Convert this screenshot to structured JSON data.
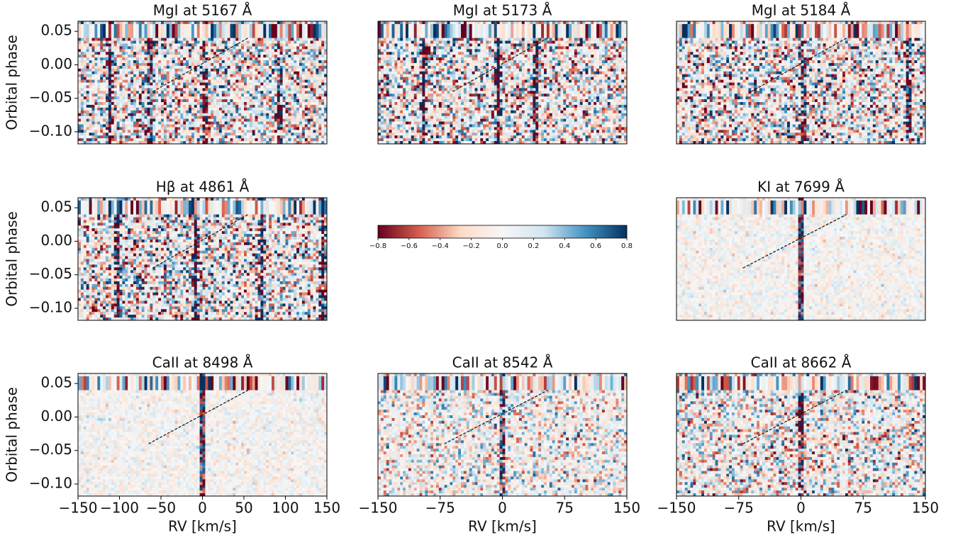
{
  "chart_data": [
    {
      "type": "heatmap",
      "title": "MgI at 5167 Å",
      "xlim": [
        -150,
        150
      ],
      "ylim": [
        -0.118,
        0.065
      ],
      "ylabel": "Orbital phase",
      "yticks": [
        {
          "value": 0.05,
          "label": "0.05"
        },
        {
          "value": 0,
          "label": "0.00"
        },
        {
          "value": -0.05,
          "label": "−0.05"
        },
        {
          "value": -0.1,
          "label": "−0.10"
        }
      ],
      "trajectory": {
        "x": [
          -60,
          55
        ],
        "y": [
          -0.04,
          0.04
        ]
      }
    },
    {
      "type": "heatmap",
      "title": "MgI at 5173 Å",
      "xlim": [
        -150,
        150
      ],
      "ylim": [
        -0.118,
        0.065
      ],
      "trajectory": {
        "x": [
          -60,
          55
        ],
        "y": [
          -0.04,
          0.04
        ]
      }
    },
    {
      "type": "heatmap",
      "title": "MgI at 5184 Å",
      "xlim": [
        -150,
        150
      ],
      "ylim": [
        -0.118,
        0.065
      ],
      "trajectory": {
        "x": [
          -60,
          55
        ],
        "y": [
          -0.04,
          0.04
        ]
      }
    },
    {
      "type": "heatmap",
      "title": "Hβ at 4861 Å",
      "xlim": [
        -150,
        150
      ],
      "ylim": [
        -0.118,
        0.065
      ],
      "ylabel": "Orbital phase",
      "yticks": [
        {
          "value": 0.05,
          "label": "0.05"
        },
        {
          "value": 0,
          "label": "0.00"
        },
        {
          "value": -0.05,
          "label": "−0.05"
        },
        {
          "value": -0.1,
          "label": "−0.10"
        }
      ],
      "trajectory": {
        "x": [
          -60,
          55
        ],
        "y": [
          -0.04,
          0.04
        ]
      }
    },
    {
      "type": "colorbar",
      "clim": [
        -0.8,
        0.8
      ],
      "colors": [
        "#67001f",
        "#d6604d",
        "#fddbc7",
        "#f7f7f7",
        "#d1e5f0",
        "#4393c3",
        "#053061"
      ],
      "ticks": [
        {
          "value": -0.8,
          "label": "−0.8"
        },
        {
          "value": -0.6,
          "label": "−0.6"
        },
        {
          "value": -0.4,
          "label": "−0.4"
        },
        {
          "value": -0.2,
          "label": "−0.2"
        },
        {
          "value": 0,
          "label": "0.0"
        },
        0.2,
        0.4,
        0.6,
        0.8
      ]
    },
    {
      "type": "heatmap",
      "title": "KI at 7699 Å",
      "xlim": [
        -150,
        150
      ],
      "ylim": [
        -0.118,
        0.065
      ],
      "trajectory": {
        "x": [
          -70,
          55
        ],
        "y": [
          -0.04,
          0.04
        ]
      }
    },
    {
      "type": "heatmap",
      "title": "CaII at 8498 Å",
      "xlim": [
        -150,
        150
      ],
      "ylim": [
        -0.118,
        0.065
      ],
      "ylabel": "Orbital phase",
      "xlabel": "RV [km/s]",
      "yticks": [
        {
          "value": 0.05,
          "label": "0.05"
        },
        {
          "value": 0,
          "label": "0.00"
        },
        {
          "value": -0.05,
          "label": "−0.05"
        },
        {
          "value": -0.1,
          "label": "−0.10"
        }
      ],
      "xticks": [
        {
          "value": -150,
          "label": "−150"
        },
        {
          "value": -100,
          "label": "−100"
        },
        {
          "value": -50,
          "label": "−50"
        },
        0,
        50,
        100,
        150
      ],
      "trajectory": {
        "x": [
          -65,
          55
        ],
        "y": [
          -0.04,
          0.04
        ]
      }
    },
    {
      "type": "heatmap",
      "title": "CaII at 8542 Å",
      "xlim": [
        -150,
        150
      ],
      "ylim": [
        -0.118,
        0.065
      ],
      "xlabel": "RV [km/s]",
      "xticks": [
        {
          "value": -150,
          "label": "−150"
        },
        {
          "value": -75,
          "label": "−75"
        },
        0,
        75,
        150
      ],
      "trajectory": {
        "x": [
          -70,
          55
        ],
        "y": [
          -0.04,
          0.04
        ]
      }
    },
    {
      "type": "heatmap",
      "title": "CaII at 8662 Å",
      "xlim": [
        -150,
        150
      ],
      "ylim": [
        -0.118,
        0.065
      ],
      "xlabel": "RV [km/s]",
      "xticks": [
        {
          "value": -150,
          "label": "−150"
        },
        {
          "value": -75,
          "label": "−75"
        },
        0,
        75,
        150
      ],
      "trajectory": {
        "x": [
          -70,
          55
        ],
        "y": [
          -0.04,
          0.04
        ]
      }
    }
  ]
}
